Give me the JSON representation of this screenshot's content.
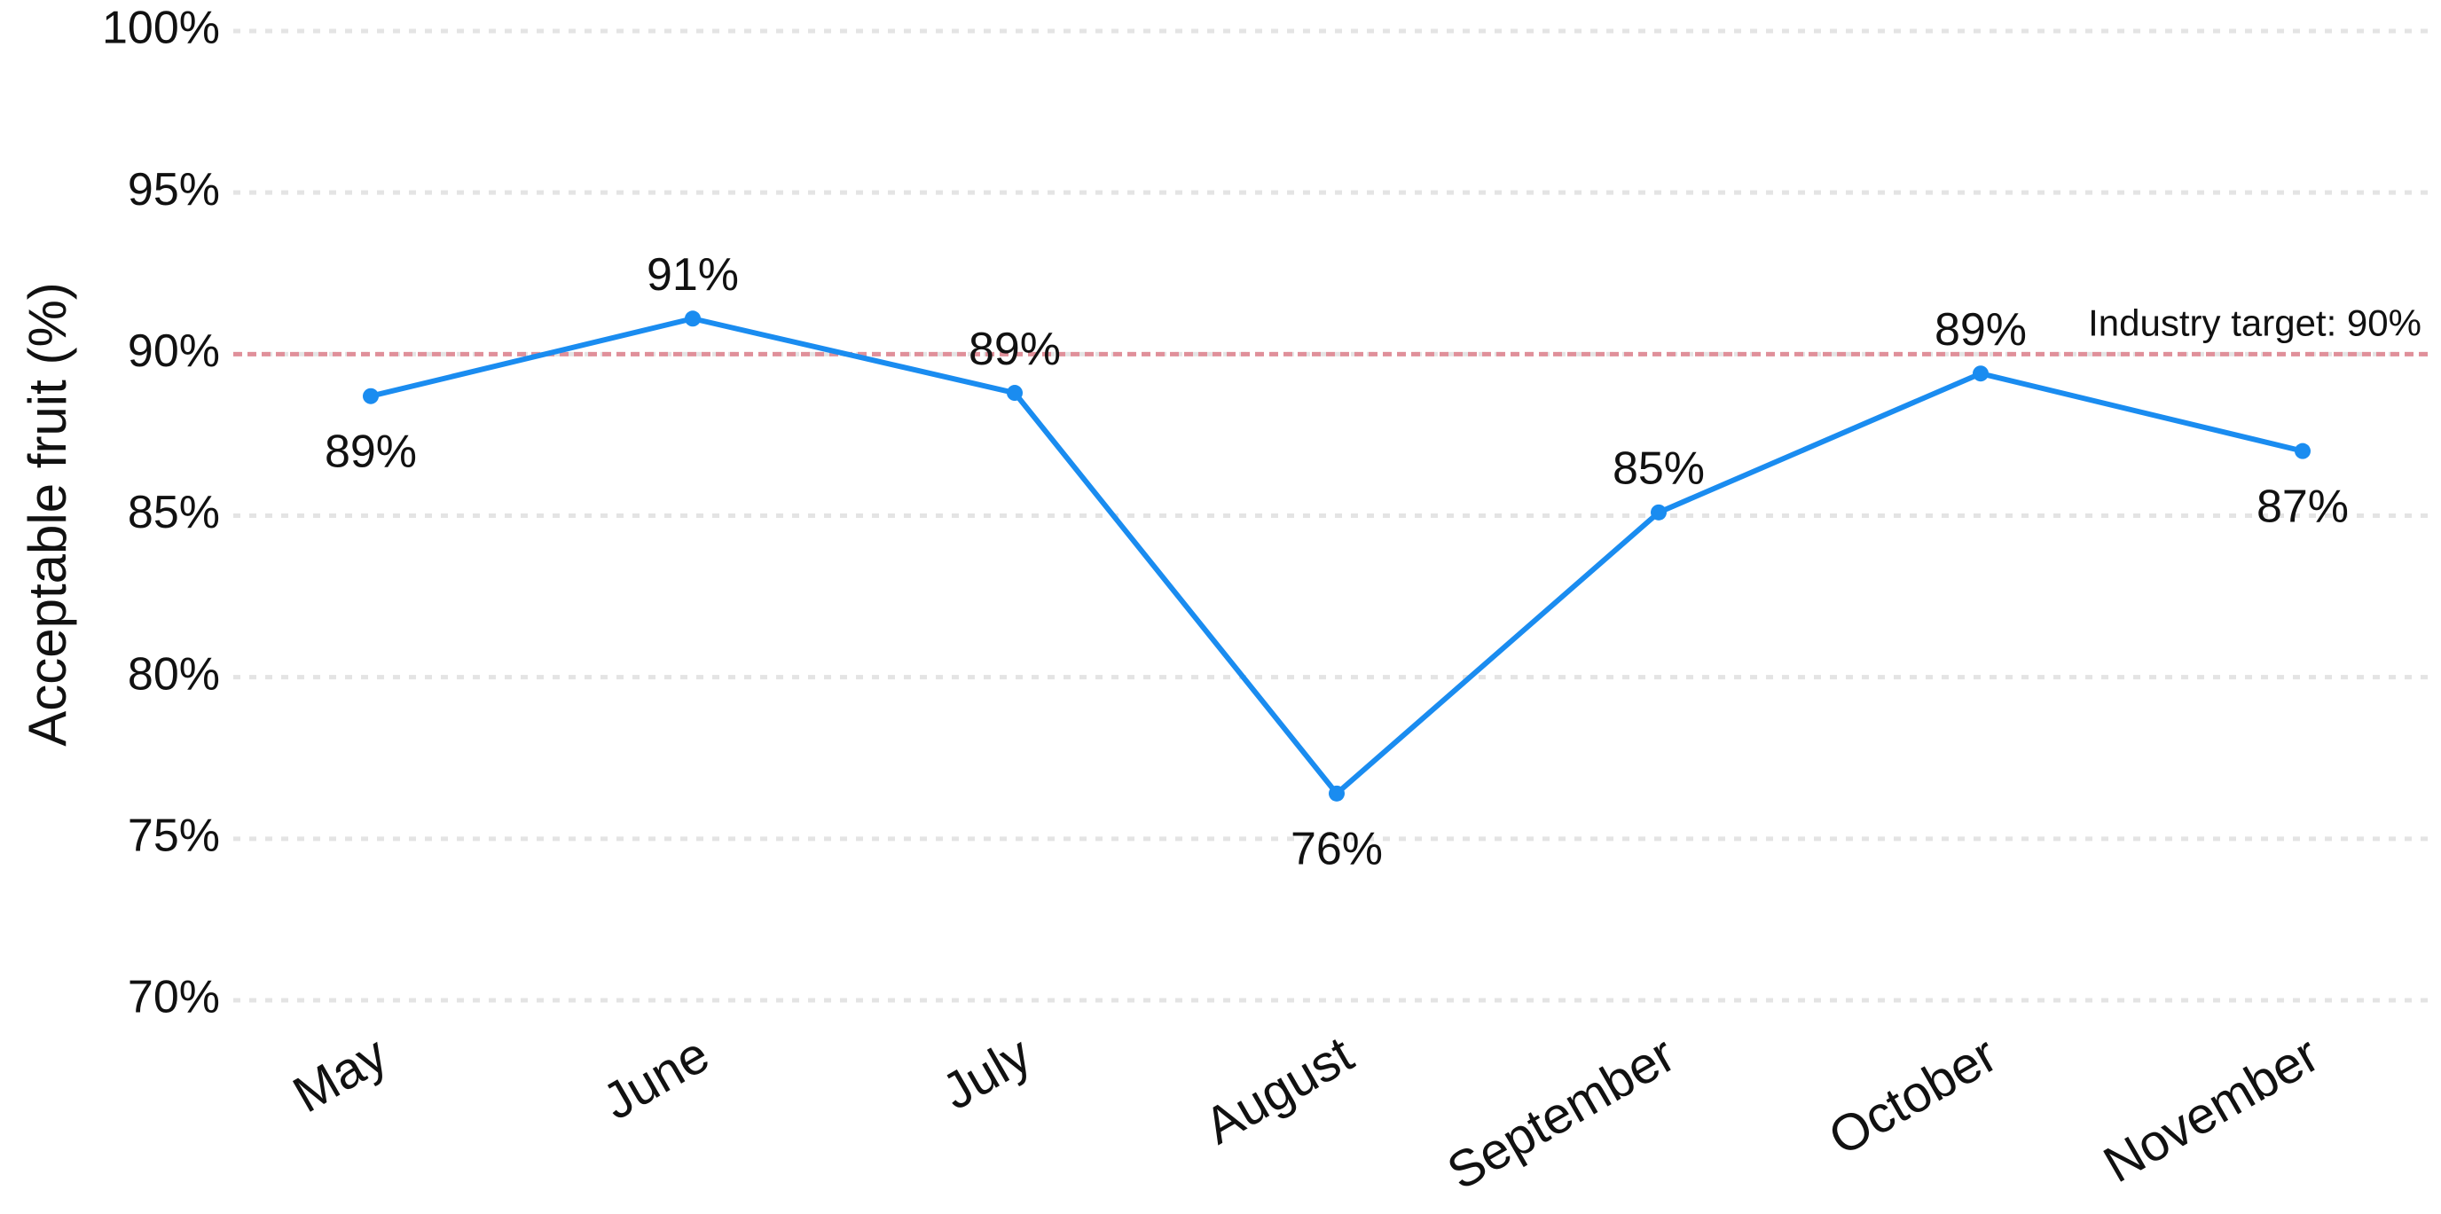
{
  "chart_data": {
    "type": "line",
    "y_axis_label": "Acceptable fruit (%)",
    "categories": [
      "May",
      "June",
      "July",
      "August",
      "September",
      "October",
      "November"
    ],
    "series": [
      {
        "name": "Acceptable fruit",
        "color": "#1a8cf0",
        "values": [
          88.7,
          91.1,
          88.8,
          76.4,
          85.1,
          89.4,
          87.0
        ],
        "value_labels": [
          "89%",
          "91%",
          "89%",
          "76%",
          "85%",
          "89%",
          "87%"
        ]
      }
    ],
    "ylim": [
      70,
      100
    ],
    "yticks": [
      {
        "value": 70,
        "label": "70%"
      },
      {
        "value": 75,
        "label": "75%"
      },
      {
        "value": 80,
        "label": "80%"
      },
      {
        "value": 85,
        "label": "85%"
      },
      {
        "value": 90,
        "label": "90%"
      },
      {
        "value": 95,
        "label": "95%"
      },
      {
        "value": 100,
        "label": "100%"
      }
    ],
    "grid": true,
    "target": {
      "value": 90,
      "label": "Industry target: 90%",
      "color": "#e0909a"
    }
  }
}
